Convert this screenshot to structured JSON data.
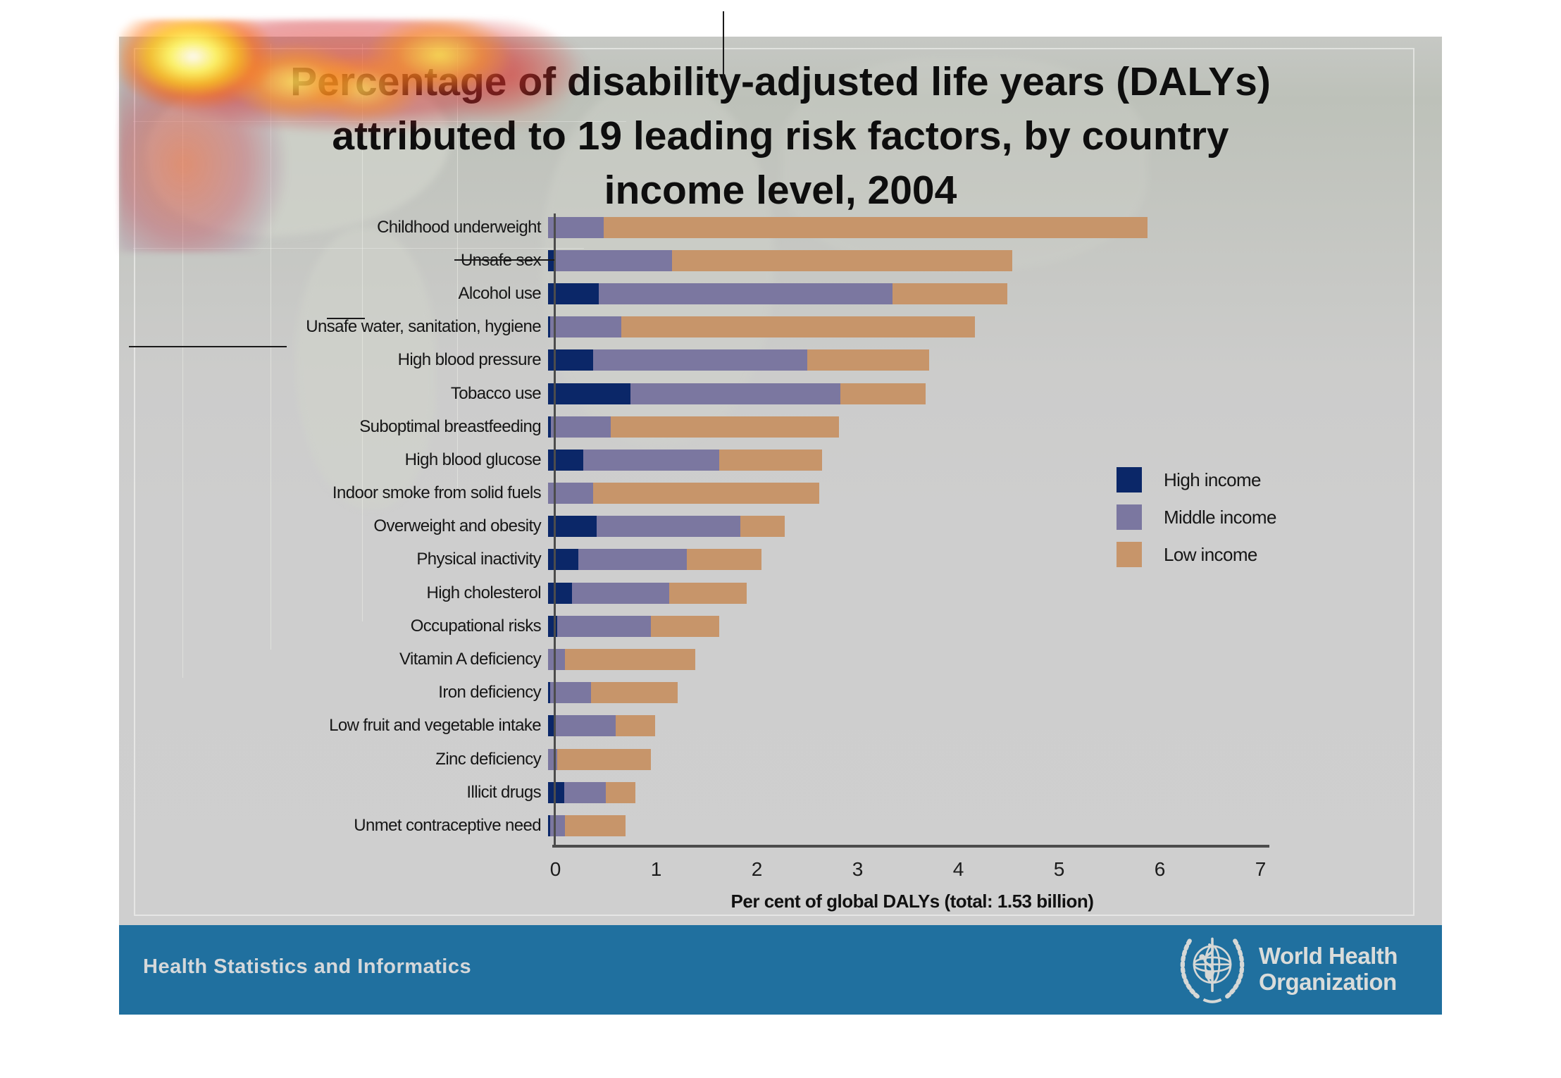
{
  "slide": {
    "title_lines": [
      "Percentage of disability-adjusted life years (DALYs)",
      "attributed to 19 leading risk factors, by country",
      "income level, 2004"
    ]
  },
  "colors": {
    "high_income": "#0b2768",
    "middle_income": "#7b77a0",
    "low_income": "#c7956a",
    "plot_background": "#cecece",
    "axis": "#4c4c4c",
    "footer_band": "#20709f",
    "footer_text": "#d5d8da"
  },
  "chart_data": {
    "type": "bar",
    "orientation": "horizontal",
    "stacked": true,
    "title": "Percentage of disability-adjusted life years (DALYs) attributed to 19 leading risk factors, by country income level, 2004",
    "xlabel": "Per cent of global DALYs (total: 1.53 billion)",
    "xlim": [
      0,
      7
    ],
    "xticks": [
      "0",
      "1",
      "2",
      "3",
      "4",
      "5",
      "6",
      "7"
    ],
    "grid": false,
    "legend_position": "right",
    "categories": [
      "Childhood underweight",
      "Unsafe sex",
      "Alcohol use",
      "Unsafe water, sanitation, hygiene",
      "High blood pressure",
      "Tobacco use",
      "Suboptimal breastfeeding",
      "High blood glucose",
      "Indoor smoke from solid fuels",
      "Overweight and obesity",
      "Physical inactivity",
      "High cholesterol",
      "Occupational risks",
      "Vitamin A deficiency",
      "Iron deficiency",
      "Low fruit and vegetable intake",
      "Zinc deficiency",
      "Illicit drugs",
      "Unmet contraceptive need"
    ],
    "series": [
      {
        "name": "High income",
        "color_key": "high_income",
        "values": [
          0.0,
          0.06,
          0.5,
          0.02,
          0.45,
          0.82,
          0.03,
          0.35,
          0.0,
          0.48,
          0.3,
          0.24,
          0.09,
          0.0,
          0.02,
          0.07,
          0.0,
          0.16,
          0.02
        ]
      },
      {
        "name": "Middle income",
        "color_key": "middle_income",
        "values": [
          0.55,
          1.17,
          2.92,
          0.71,
          2.12,
          2.08,
          0.59,
          1.35,
          0.45,
          1.43,
          1.08,
          0.96,
          0.93,
          0.17,
          0.41,
          0.6,
          0.09,
          0.41,
          0.15
        ]
      },
      {
        "name": "Low income",
        "color_key": "low_income",
        "values": [
          5.4,
          3.38,
          1.14,
          3.51,
          1.21,
          0.85,
          2.27,
          1.02,
          2.24,
          0.44,
          0.74,
          0.77,
          0.68,
          1.29,
          0.86,
          0.39,
          0.93,
          0.3,
          0.6
        ]
      }
    ],
    "totals": [
      5.95,
      4.61,
      4.56,
      4.24,
      3.78,
      3.75,
      2.89,
      2.72,
      2.69,
      2.35,
      2.12,
      1.97,
      1.7,
      1.46,
      1.29,
      1.06,
      1.02,
      0.87,
      0.77
    ]
  },
  "footer": {
    "department": "Health Statistics and Informatics",
    "logo": {
      "icon": "who-emblem-icon",
      "line1": "World Health",
      "line2": "Organization"
    }
  }
}
